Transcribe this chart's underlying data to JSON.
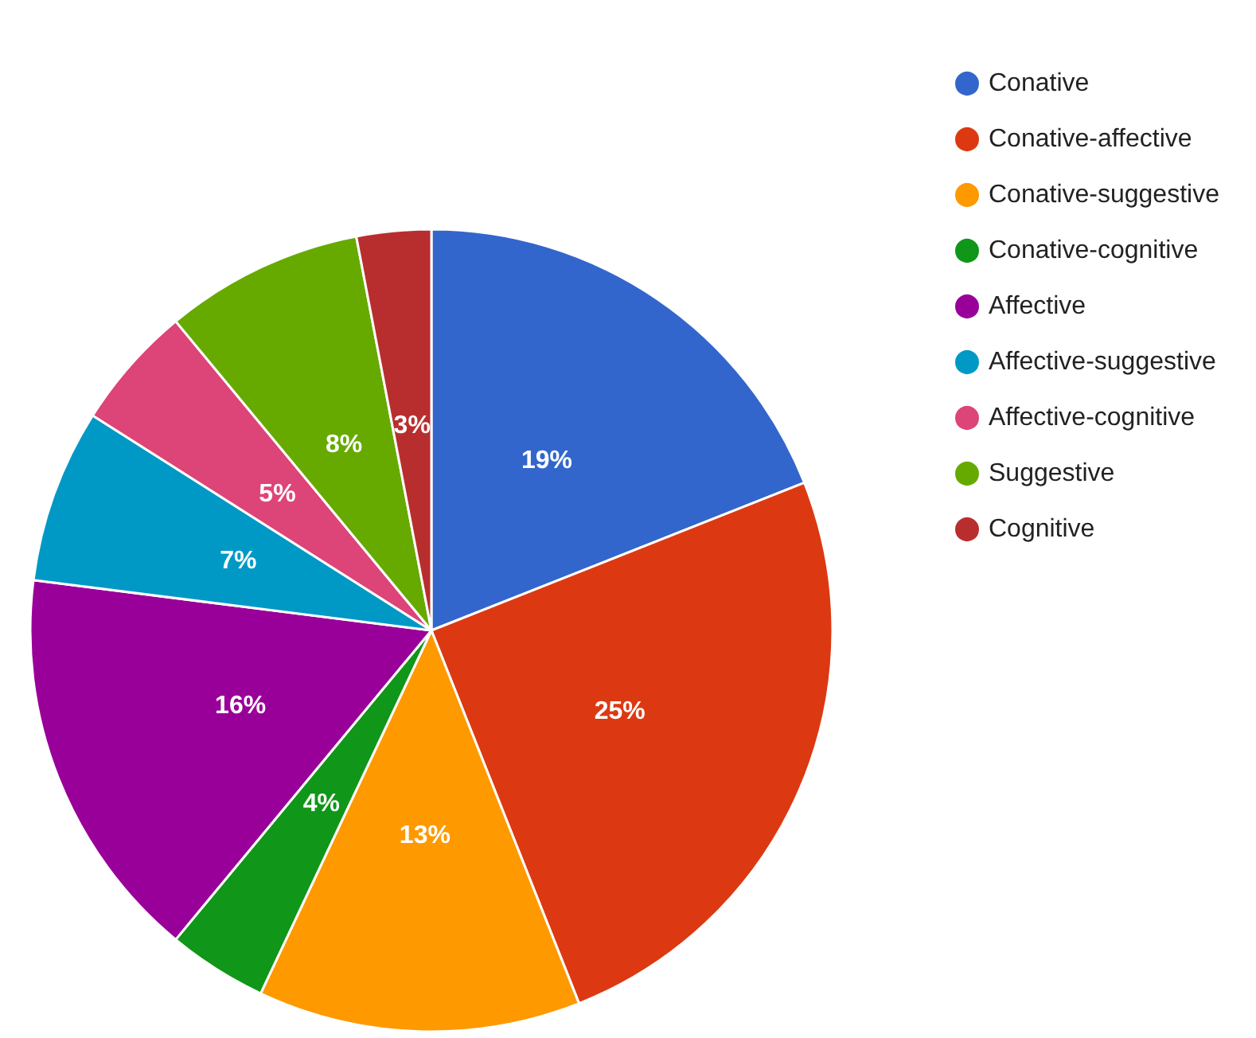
{
  "chart_data": {
    "type": "pie",
    "categories": [
      "Conative",
      "Conative-affective",
      "Conative-suggestive",
      "Conative-cognitive",
      "Affective",
      "Affective-suggestive",
      "Affective-cognitive",
      "Suggestive",
      "Cognitive"
    ],
    "values": [
      19,
      25,
      13,
      4,
      16,
      7,
      5,
      8,
      3
    ],
    "value_labels": [
      "19%",
      "25%",
      "13%",
      "4%",
      "16%",
      "7%",
      "5%",
      "8%",
      "3%"
    ],
    "colors": [
      "#3366cc",
      "#dc3912",
      "#ff9900",
      "#109618",
      "#990099",
      "#0099c6",
      "#dd4477",
      "#66aa00",
      "#b82e2e"
    ],
    "legend": "top right"
  }
}
